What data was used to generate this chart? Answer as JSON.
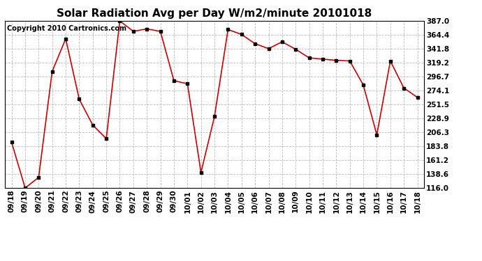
{
  "title": "Solar Radiation Avg per Day W/m2/minute 20101018",
  "copyright_text": "Copyright 2010 Cartronics.com",
  "x_labels": [
    "09/18",
    "09/19",
    "09/20",
    "09/21",
    "09/22",
    "09/23",
    "09/24",
    "09/25",
    "09/26",
    "09/27",
    "09/28",
    "09/29",
    "09/30",
    "10/01",
    "10/02",
    "10/03",
    "10/04",
    "10/05",
    "10/06",
    "10/07",
    "10/08",
    "10/09",
    "10/10",
    "10/11",
    "10/12",
    "10/13",
    "10/14",
    "10/15",
    "10/16",
    "10/17",
    "10/18"
  ],
  "y_values": [
    190,
    116,
    133,
    305,
    358,
    260,
    218,
    196,
    387,
    370,
    374,
    370,
    290,
    285,
    141,
    232,
    373,
    365,
    350,
    342,
    353,
    341,
    327,
    325,
    323,
    322,
    283,
    202,
    322,
    278,
    263
  ],
  "y_min": 116.0,
  "y_max": 387.0,
  "y_ticks": [
    116.0,
    138.6,
    161.2,
    183.8,
    206.3,
    228.9,
    251.5,
    274.1,
    296.7,
    319.2,
    341.8,
    364.4,
    387.0
  ],
  "line_color": "#cc0000",
  "marker_color": "#000000",
  "bg_color": "#ffffff",
  "grid_color": "#bbbbbb",
  "title_fontsize": 11,
  "copyright_fontsize": 7,
  "tick_fontsize": 7.5
}
